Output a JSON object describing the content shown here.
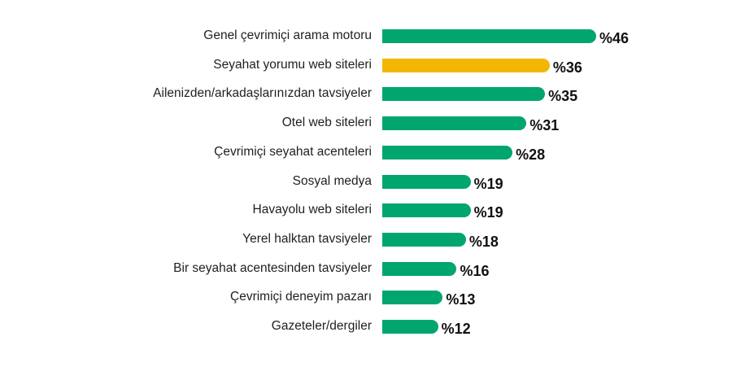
{
  "chart_data": {
    "type": "bar",
    "orientation": "horizontal",
    "categories": [
      "Genel çevrimiçi arama motoru",
      "Seyahat yorumu web siteleri",
      "Ailenizden/arkadaşlarınızdan tavsiyeler",
      "Otel web siteleri",
      "Çevrimiçi seyahat acenteleri",
      "Sosyal medya",
      "Havayolu web siteleri",
      "Yerel halktan tavsiyeler",
      "Bir seyahat acentesinden tavsiyeler",
      "Çevrimiçi deneyim pazarı",
      "Gazeteler/dergiler"
    ],
    "values": [
      46,
      36,
      35,
      31,
      28,
      19,
      19,
      18,
      16,
      13,
      12
    ],
    "value_labels": [
      "%46",
      "%36",
      "%35",
      "%31",
      "%28",
      "%19",
      "%19",
      "%18",
      "%16",
      "%13",
      "%12"
    ],
    "highlight_index": 1,
    "xlim": [
      0,
      46
    ],
    "grid": false,
    "legend": "none",
    "colors": {
      "default_bar": "#00a66e",
      "highlight_bar": "#f2b705"
    }
  }
}
